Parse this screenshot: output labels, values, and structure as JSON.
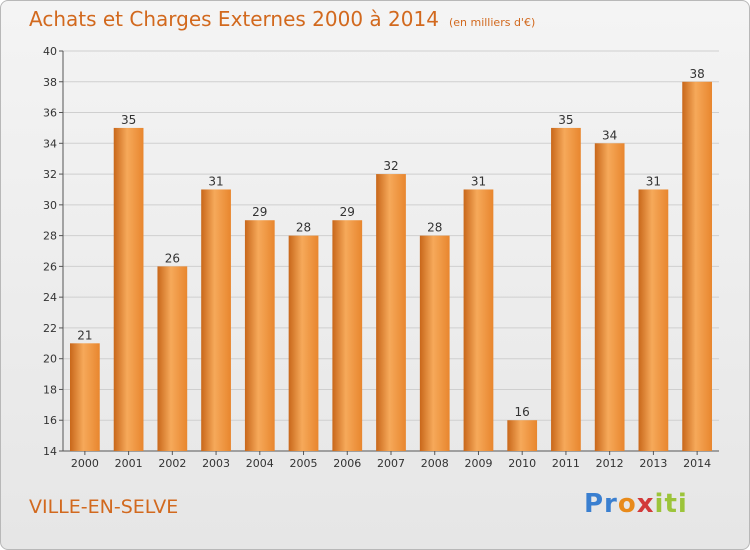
{
  "chart_data": {
    "type": "bar",
    "title": "Achats et Charges Externes 2000 à 2014",
    "subtitle": "(en milliers d'€)",
    "categories": [
      "2000",
      "2001",
      "2002",
      "2003",
      "2004",
      "2005",
      "2006",
      "2007",
      "2008",
      "2009",
      "2010",
      "2011",
      "2012",
      "2013",
      "2014"
    ],
    "values": [
      21,
      35,
      26,
      31,
      29,
      28,
      29,
      32,
      28,
      31,
      16,
      35,
      34,
      31,
      38
    ],
    "ylim": [
      14,
      40
    ],
    "yticks": [
      14,
      16,
      18,
      20,
      22,
      24,
      26,
      28,
      30,
      32,
      34,
      36,
      38,
      40
    ],
    "grid": true,
    "bar_color": "#e8862e",
    "bar_color_light": "#f6a95a",
    "bar_color_dark": "#c8671a"
  },
  "footer": {
    "commune": "VILLE-EN-SELVE",
    "logo": [
      "Pr",
      "o",
      "x",
      "iti"
    ]
  }
}
